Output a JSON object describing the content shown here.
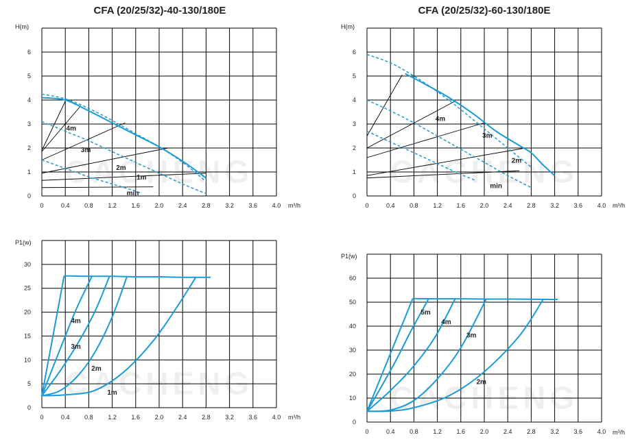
{
  "chart_data": [
    {
      "id": "h1",
      "type": "line",
      "title": "CFA (20/25/32)-40-130/180E",
      "ylabel": "H(m)",
      "xlabel": "m³/h",
      "xticks": [
        "0",
        "0.4",
        "0.8",
        "1.2",
        "1.6",
        "2.0",
        "2.4",
        "2.8",
        "3.2",
        "3.6",
        "4.0"
      ],
      "yticks": [
        "0",
        "1",
        "2",
        "3",
        "4",
        "5",
        "6"
      ],
      "xlim": [
        0,
        4.0
      ],
      "ylim": [
        0,
        7
      ],
      "grid": true,
      "series": [
        {
          "style": "solid",
          "x": [
            0,
            0.4,
            0.8,
            1.2,
            1.6,
            2.0,
            2.4,
            2.8
          ],
          "y": [
            4.1,
            4.0,
            3.55,
            3.05,
            2.55,
            2.05,
            1.45,
            0.75
          ]
        },
        {
          "style": "dashed",
          "x": [
            0,
            0.4,
            0.8,
            1.2,
            1.6,
            2.0,
            2.4,
            2.8
          ],
          "y": [
            4.25,
            4.05,
            3.65,
            3.15,
            2.6,
            2.05,
            1.4,
            0.6
          ]
        },
        {
          "style": "dashed",
          "x": [
            0,
            0.4,
            0.8,
            1.2,
            1.6,
            2.0,
            2.4,
            2.8
          ],
          "y": [
            3.1,
            2.7,
            2.3,
            1.85,
            1.4,
            0.95,
            0.5,
            0.1
          ]
        },
        {
          "style": "dashed",
          "x": [
            0,
            0.4,
            0.8,
            1.2,
            1.6,
            1.7
          ],
          "y": [
            1.5,
            1.15,
            0.8,
            0.5,
            0.2,
            0.1
          ]
        }
      ],
      "system_lines": [
        {
          "x": [
            0,
            0.4
          ],
          "y": [
            1.9,
            3.95
          ]
        },
        {
          "x": [
            0,
            0.66
          ],
          "y": [
            1.85,
            3.75
          ]
        },
        {
          "x": [
            0,
            1.42
          ],
          "y": [
            1.5,
            3.05
          ]
        },
        {
          "x": [
            0,
            2.15
          ],
          "y": [
            0.95,
            2.0
          ]
        },
        {
          "x": [
            0,
            2.8
          ],
          "y": [
            0.65,
            0.95
          ]
        },
        {
          "x": [
            0,
            1.9
          ],
          "y": [
            0.35,
            0.38
          ]
        }
      ],
      "annotations": [
        {
          "text": "4m",
          "x": 0.5,
          "y": 2.85
        },
        {
          "text": "3m",
          "x": 0.75,
          "y": 1.95
        },
        {
          "text": "2m",
          "x": 1.35,
          "y": 1.2
        },
        {
          "text": "1m",
          "x": 1.7,
          "y": 0.8
        },
        {
          "text": "min",
          "x": 1.55,
          "y": 0.15
        }
      ]
    },
    {
      "id": "h2",
      "type": "line",
      "title": "CFA (20/25/32)-60-130/180E",
      "ylabel": "H(m)",
      "xlabel": "m³/h",
      "xticks": [
        "0",
        "0.4",
        "0.8",
        "1.2",
        "1.6",
        "2.0",
        "2.4",
        "2.8",
        "3.2",
        "3.6",
        "4.0"
      ],
      "yticks": [
        "0",
        "1",
        "2",
        "3",
        "4",
        "5",
        "6"
      ],
      "xlim": [
        0,
        4.0
      ],
      "ylim": [
        0,
        7
      ],
      "grid": true,
      "series": [
        {
          "style": "solid",
          "x": [
            0.65,
            1.0,
            1.4,
            1.8,
            2.2,
            2.6,
            2.8,
            3.0,
            3.2
          ],
          "y": [
            5.1,
            4.65,
            4.1,
            3.45,
            2.7,
            2.1,
            1.8,
            1.3,
            0.85
          ]
        },
        {
          "style": "dashed",
          "x": [
            0,
            0.4,
            0.8,
            1.2,
            1.6,
            2.0,
            2.4,
            2.8
          ],
          "y": [
            5.9,
            5.55,
            5.0,
            4.35,
            3.6,
            2.8,
            2.0,
            1.2
          ]
        },
        {
          "style": "dashed",
          "x": [
            0,
            0.4,
            0.8,
            1.2,
            1.6,
            2.0,
            2.4,
            2.8
          ],
          "y": [
            4.0,
            3.55,
            3.05,
            2.5,
            1.95,
            1.4,
            0.85,
            0.35
          ]
        },
        {
          "style": "dashed",
          "x": [
            0,
            0.4,
            0.8,
            1.2,
            1.6,
            1.85
          ],
          "y": [
            2.7,
            2.25,
            1.8,
            1.35,
            0.9,
            0.65
          ]
        }
      ],
      "system_lines": [
        {
          "x": [
            0,
            0.6
          ],
          "y": [
            2.5,
            5.05
          ]
        },
        {
          "x": [
            0,
            1.5
          ],
          "y": [
            2.0,
            3.95
          ]
        },
        {
          "x": [
            0,
            2.0
          ],
          "y": [
            1.6,
            3.05
          ]
        },
        {
          "x": [
            0,
            2.7
          ],
          "y": [
            0.85,
            2.0
          ]
        },
        {
          "x": [
            0,
            2.6
          ],
          "y": [
            0.75,
            1.05
          ]
        }
      ],
      "annotations": [
        {
          "text": "4m",
          "x": 1.25,
          "y": 3.25
        },
        {
          "text": "3m",
          "x": 2.05,
          "y": 2.55
        },
        {
          "text": "2m",
          "x": 2.55,
          "y": 1.5
        },
        {
          "text": "min",
          "x": 2.2,
          "y": 0.45
        }
      ]
    },
    {
      "id": "p1",
      "type": "line",
      "ylabel": "P1(w)",
      "xlabel": "m³/h",
      "xticks": [
        "0",
        "0.4",
        "0.8",
        "1.2",
        "1.6",
        "2.0",
        "2.4",
        "2.8",
        "3.2",
        "3.6",
        "4.0"
      ],
      "yticks": [
        "0",
        "5",
        "10",
        "15",
        "20",
        "25",
        "30"
      ],
      "xlim": [
        0,
        4.0
      ],
      "ylim": [
        0,
        35
      ],
      "grid": true,
      "series": [
        {
          "style": "solid",
          "x": [
            0.38,
            0.8,
            1.2,
            1.6,
            2.0,
            2.4,
            2.88
          ],
          "y": [
            27.6,
            27.5,
            27.5,
            27.4,
            27.4,
            27.3,
            27.3
          ]
        },
        {
          "style": "solid",
          "x": [
            0,
            0.38
          ],
          "y": [
            2.5,
            27.6
          ]
        },
        {
          "style": "solid",
          "x": [
            0,
            0.2,
            0.4,
            0.6,
            0.85
          ],
          "y": [
            2.5,
            8.8,
            15.0,
            21.0,
            27.4
          ]
        },
        {
          "style": "solid",
          "x": [
            0,
            0.3,
            0.6,
            0.9,
            1.15
          ],
          "y": [
            2.5,
            7.5,
            13.2,
            20.0,
            27.4
          ]
        },
        {
          "style": "solid",
          "x": [
            0,
            0.3,
            0.6,
            0.9,
            1.2,
            1.45
          ],
          "y": [
            2.5,
            3.5,
            6.5,
            11.5,
            19.0,
            27.4
          ]
        },
        {
          "style": "solid",
          "x": [
            0,
            0.4,
            0.9,
            1.4,
            1.9,
            2.3,
            2.62
          ],
          "y": [
            2.5,
            2.7,
            3.6,
            7.5,
            14.0,
            21.0,
            27.2
          ]
        }
      ],
      "annotations": [
        {
          "text": "4m",
          "x": 0.58,
          "y": 18.3
        },
        {
          "text": "3m",
          "x": 0.58,
          "y": 12.9
        },
        {
          "text": "2m",
          "x": 0.93,
          "y": 8.3
        },
        {
          "text": "1m",
          "x": 1.2,
          "y": 3.3
        }
      ]
    },
    {
      "id": "p2",
      "type": "line",
      "ylabel": "P1(w)",
      "xlabel": "m³/h",
      "xticks": [
        "0",
        "0.4",
        "0.8",
        "1.2",
        "1.6",
        "2.0",
        "2.4",
        "2.8",
        "3.2",
        "3.6",
        "4.0"
      ],
      "yticks": [
        "0",
        "10",
        "20",
        "30",
        "40",
        "50",
        "60"
      ],
      "xlim": [
        0,
        4.0
      ],
      "ylim": [
        0,
        70
      ],
      "grid": true,
      "series": [
        {
          "style": "solid",
          "x": [
            0.78,
            1.2,
            1.6,
            2.0,
            2.4,
            2.8,
            3.25
          ],
          "y": [
            51.5,
            51.4,
            51.4,
            51.3,
            51.3,
            51.2,
            51.1
          ]
        },
        {
          "style": "solid",
          "x": [
            0,
            0.78
          ],
          "y": [
            4.5,
            51.5
          ]
        },
        {
          "style": "solid",
          "x": [
            0,
            0.25,
            0.5,
            0.75,
            1.05
          ],
          "y": [
            4.5,
            15.0,
            26.0,
            38.0,
            51.4
          ]
        },
        {
          "style": "solid",
          "x": [
            0,
            0.35,
            0.75,
            1.15,
            1.5
          ],
          "y": [
            4.5,
            12.0,
            22.0,
            35.0,
            51.3
          ]
        },
        {
          "style": "solid",
          "x": [
            0,
            0.4,
            0.8,
            1.2,
            1.6,
            2.03
          ],
          "y": [
            4.5,
            5.0,
            9.0,
            18.0,
            31.0,
            51.2
          ]
        },
        {
          "style": "solid",
          "x": [
            0,
            0.4,
            0.8,
            1.4,
            2.0,
            2.6,
            3.0
          ],
          "y": [
            4.5,
            4.6,
            6.0,
            11.0,
            21.0,
            36.0,
            51.0
          ]
        }
      ],
      "annotations": [
        {
          "text": "5m",
          "x": 1.0,
          "y": 46.0
        },
        {
          "text": "4m",
          "x": 1.35,
          "y": 42.0
        },
        {
          "text": "3m",
          "x": 1.78,
          "y": 36.5
        },
        {
          "text": "2m",
          "x": 1.95,
          "y": 17.0
        }
      ]
    }
  ],
  "watermark": "CACHENG",
  "accent_color": "#1a9ad6"
}
